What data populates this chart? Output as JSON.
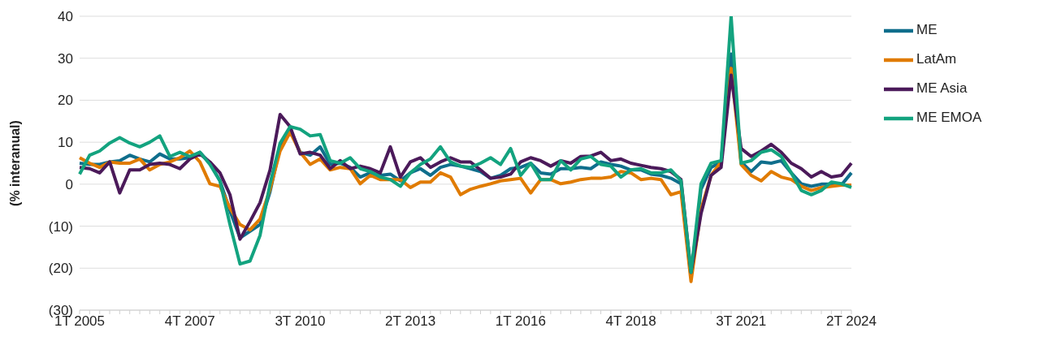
{
  "chart_data": {
    "type": "line",
    "ylabel": "(% interanual)",
    "categories": [
      "1T 2005",
      null,
      null,
      null,
      null,
      null,
      null,
      null,
      null,
      null,
      null,
      "4T 2007",
      null,
      null,
      null,
      null,
      null,
      null,
      null,
      null,
      null,
      null,
      "3T 2010",
      null,
      null,
      null,
      null,
      null,
      null,
      null,
      null,
      null,
      null,
      "2T 2013",
      null,
      null,
      null,
      null,
      null,
      null,
      null,
      null,
      null,
      null,
      "1T 2016",
      null,
      null,
      null,
      null,
      null,
      null,
      null,
      null,
      null,
      null,
      "4T 2018",
      null,
      null,
      null,
      null,
      null,
      null,
      null,
      null,
      null,
      null,
      "3T 2021",
      null,
      null,
      null,
      null,
      null,
      null,
      null,
      null,
      null,
      null,
      "2T 2024"
    ],
    "series": [
      {
        "name": "ME",
        "color": "#0f6e8c",
        "values": [
          5,
          4.7,
          4.7,
          5.3,
          5.6,
          6.9,
          6,
          5.3,
          7.2,
          6,
          6,
          6.3,
          7.6,
          5,
          0.8,
          -6.3,
          -12.8,
          -11.2,
          -9.6,
          -1.8,
          8.9,
          13.1,
          7.6,
          6.9,
          8.9,
          4.7,
          5,
          4,
          1.7,
          2.7,
          2.1,
          2.4,
          0.8,
          2.7,
          3.7,
          2.1,
          4,
          4.7,
          4.3,
          3.7,
          3,
          1.4,
          2.1,
          3.7,
          4,
          5,
          2.7,
          2.4,
          3.7,
          3.7,
          4,
          3.7,
          5.3,
          4.7,
          4.3,
          3.4,
          3.4,
          2.4,
          2.1,
          1.4,
          0.1,
          -22,
          -1.2,
          4,
          5.3,
          31,
          5.3,
          3,
          5.3,
          5,
          5.6,
          2.7,
          0.1,
          -0.5,
          0,
          0,
          -0.2,
          2.7
        ]
      },
      {
        "name": "LatAm",
        "color": "#e07b00",
        "values": [
          6.3,
          5,
          4,
          5.3,
          5,
          5,
          6,
          3.4,
          4.7,
          5.3,
          6.3,
          7.9,
          5.3,
          0.1,
          -0.5,
          -5.7,
          -9.6,
          -10.9,
          -8.3,
          -1.2,
          7.9,
          12.4,
          7.6,
          4.7,
          6,
          3.4,
          4,
          3.7,
          0.1,
          2.1,
          1.1,
          1.1,
          1.1,
          -0.8,
          0.5,
          0.5,
          2.7,
          1.7,
          -2.5,
          -1.2,
          -0.5,
          0.1,
          0.8,
          1.1,
          1.4,
          -2.1,
          1.1,
          1.1,
          0.1,
          0.5,
          1.1,
          1.4,
          1.4,
          1.7,
          3,
          2.7,
          1.1,
          1.4,
          1.1,
          -2.5,
          -1.8,
          -23.2,
          -6,
          2.1,
          5.3,
          27.6,
          4.7,
          2.1,
          0.8,
          3,
          1.7,
          1.1,
          -0.5,
          -1.5,
          -0.8,
          -0.5,
          -0.2,
          -0.2
        ]
      },
      {
        "name": "ME Asia",
        "color": "#4b1a5a",
        "values": [
          4,
          3.7,
          2.7,
          5.3,
          -2.1,
          3.4,
          3.4,
          4.7,
          5,
          4.7,
          3.7,
          6,
          7.2,
          5.3,
          2.7,
          -2.5,
          -13.1,
          -8.9,
          -4.4,
          3.4,
          16.6,
          13.7,
          7.2,
          7.6,
          6.9,
          3.7,
          5.6,
          3.7,
          4.3,
          3.7,
          2.7,
          8.9,
          1.7,
          5.3,
          6.3,
          4,
          5.3,
          6.3,
          5.3,
          5.3,
          3.4,
          1.4,
          1.7,
          2.4,
          5.3,
          6.3,
          5.6,
          4.3,
          5.6,
          5,
          6.6,
          6.7,
          7.6,
          5.6,
          6,
          5,
          4.5,
          4,
          3.7,
          3,
          1.1,
          -21,
          -7,
          2.1,
          4,
          26,
          8.5,
          6.6,
          7.9,
          9.5,
          7.6,
          5,
          3.7,
          1.7,
          3,
          1.7,
          2.1,
          5
        ]
      },
      {
        "name": "ME EMOA",
        "color": "#13a37f",
        "values": [
          2.4,
          6.9,
          7.9,
          9.8,
          11.1,
          9.8,
          8.9,
          10,
          11.5,
          6.6,
          7.6,
          6.6,
          7.6,
          4.7,
          0.8,
          -9.6,
          -19,
          -18.3,
          -12.2,
          0.1,
          9.8,
          13.7,
          13.1,
          11.5,
          11.8,
          5.6,
          5,
          6.3,
          3.7,
          3,
          1.7,
          1.1,
          -0.5,
          2.7,
          4.7,
          6,
          8.9,
          5.3,
          4.3,
          4,
          5,
          6.3,
          4.7,
          8.5,
          2.1,
          5,
          1.1,
          1.1,
          5.6,
          3.4,
          6,
          6.6,
          4.7,
          4.3,
          1.7,
          3.4,
          3.7,
          2.7,
          2.7,
          3.4,
          0.8,
          -21,
          0.1,
          5,
          5.6,
          40,
          5,
          5.6,
          7.6,
          8.2,
          6.6,
          2.7,
          -1.5,
          -2.5,
          -1.5,
          0.5,
          0.1,
          -0.8
        ]
      }
    ],
    "ylim": [
      -30,
      40
    ],
    "yticks": [
      {
        "value": -30,
        "label": "(30)"
      },
      {
        "value": -20,
        "label": "(20)"
      },
      {
        "value": -10,
        "label": "(10)"
      },
      0,
      10,
      20,
      30,
      40
    ],
    "grid": "y",
    "legend": "right",
    "line_style": "solid"
  }
}
